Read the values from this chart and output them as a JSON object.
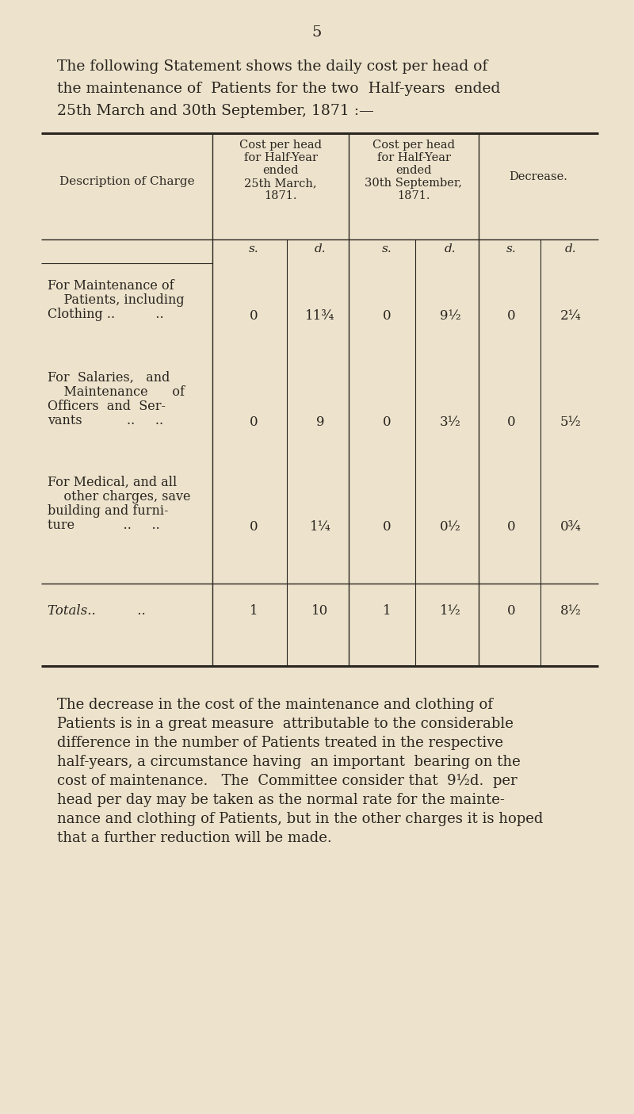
{
  "bg_color": "#ede3cc",
  "text_color": "#2a2520",
  "page_number": "5",
  "intro_lines": [
    "The following Statement shows the daily cost per head of",
    "the maintenance of  Patients for the two  Half-years  ended",
    "25th March and 30th September, 1871 :—"
  ],
  "col0_header": "Description of Charge",
  "col1_header": [
    "Cost per head",
    "for Half-Year",
    "ended",
    "25th March,",
    "1871."
  ],
  "col2_header": [
    "Cost per head",
    "for Half-Year",
    "ended",
    "30th September,",
    "1871."
  ],
  "col3_header": "Decrease.",
  "rows": [
    {
      "label": [
        "For Maintenance of",
        "    Patients, including",
        "Clothing ..          .."
      ],
      "c1s": "0",
      "c1d": "11¾",
      "c2s": "0",
      "c2d": "9½",
      "c3s": "0",
      "c3d": "2¼"
    },
    {
      "label": [
        "For  Salaries,   and",
        "    Maintenance      of",
        "Officers  and  Ser-",
        "vants           ..     .."
      ],
      "c1s": "0",
      "c1d": "9",
      "c2s": "0",
      "c2d": "3½",
      "c3s": "0",
      "c3d": "5½"
    },
    {
      "label": [
        "For Medical, and all",
        "    other charges, save",
        "building and furni-",
        "ture            ..     .."
      ],
      "c1s": "0",
      "c1d": "1¼",
      "c2s": "0",
      "c2d": "0½",
      "c3s": "0",
      "c3d": "0¾"
    }
  ],
  "totals_label": "Totals..          ..",
  "tot_c1s": "1",
  "tot_c1d": "10",
  "tot_c2s": "1",
  "tot_c2d": "1½",
  "tot_c3s": "0",
  "tot_c3d": "8½",
  "footer_lines": [
    "The decrease in the cost of the maintenance and clothing of",
    "Patients is in a great measure  attributable to the considerable",
    "difference in the number of Patients treated in the respective",
    "half-years, a circumstance having  an important  bearing on the",
    "cost of maintenance.   The  Committee consider that  9½d.  per",
    "head per day may be taken as the normal rate for the mainte-",
    "nance and clothing of Patients, but in the other charges it is hoped",
    "that a further reduction will be made."
  ]
}
